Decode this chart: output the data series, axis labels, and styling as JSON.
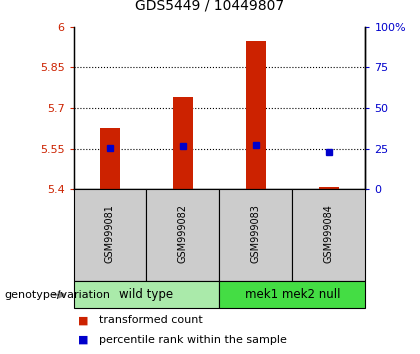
{
  "title": "GDS5449 / 10449807",
  "samples": [
    "GSM999081",
    "GSM999082",
    "GSM999083",
    "GSM999084"
  ],
  "bar_values": [
    5.628,
    5.742,
    5.945,
    5.408
  ],
  "bar_bottom": 5.4,
  "percentile_values": [
    5.553,
    5.561,
    5.565,
    5.538
  ],
  "ylim_left": [
    5.4,
    6.0
  ],
  "ylim_right": [
    0,
    100
  ],
  "yticks_left": [
    5.4,
    5.55,
    5.7,
    5.85,
    6.0
  ],
  "ytick_labels_left": [
    "5.4",
    "5.55",
    "5.7",
    "5.85",
    "6"
  ],
  "yticks_right": [
    0,
    25,
    50,
    75,
    100
  ],
  "ytick_labels_right": [
    "0",
    "25",
    "50",
    "75",
    "100%"
  ],
  "hlines": [
    5.55,
    5.7,
    5.85
  ],
  "bar_color": "#cc2200",
  "percentile_color": "#0000cc",
  "groups": [
    {
      "label": "wild type",
      "indices": [
        0,
        1
      ],
      "color": "#aaeaaa"
    },
    {
      "label": "mek1 mek2 null",
      "indices": [
        2,
        3
      ],
      "color": "#44dd44"
    }
  ],
  "group_label": "genotype/variation",
  "legend_bar_label": "transformed count",
  "legend_pct_label": "percentile rank within the sample",
  "bar_width": 0.28,
  "sample_bg_color": "#cccccc",
  "title_fontsize": 10,
  "tick_fontsize": 8,
  "sample_fontsize": 7,
  "group_fontsize": 8.5,
  "legend_fontsize": 8
}
